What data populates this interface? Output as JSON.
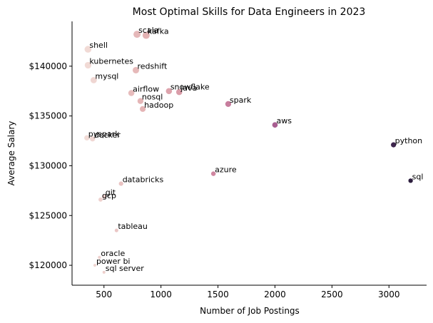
{
  "chart_data": {
    "type": "scatter",
    "title": "Most Optimal Skills for Data Engineers in 2023",
    "xlabel": "Number of Job Postings",
    "ylabel": "Average Salary",
    "xlim": [
      220,
      3330
    ],
    "ylim": [
      118000,
      144500
    ],
    "xticks": [
      {
        "value": 500,
        "label": "500"
      },
      {
        "value": 1000,
        "label": "1000"
      },
      {
        "value": 1500,
        "label": "1500"
      },
      {
        "value": 2000,
        "label": "2000"
      },
      {
        "value": 2500,
        "label": "2500"
      },
      {
        "value": 3000,
        "label": "3000"
      }
    ],
    "yticks": [
      {
        "value": 120000,
        "label": "$120000"
      },
      {
        "value": 125000,
        "label": "$125000"
      },
      {
        "value": 130000,
        "label": "$130000"
      },
      {
        "value": 135000,
        "label": "$135000"
      },
      {
        "value": 140000,
        "label": "$140000"
      }
    ],
    "grid": false,
    "legend": "none",
    "color_scale": [
      "#f1dbd6",
      "#e2aeb0",
      "#cf85a0",
      "#a45a8f",
      "#6d3a76",
      "#2d1e3e"
    ],
    "points": [
      {
        "label": "scala",
        "x": 790,
        "y": 143200
      },
      {
        "label": "kafka",
        "x": 870,
        "y": 143100
      },
      {
        "label": "shell",
        "x": 360,
        "y": 141700
      },
      {
        "label": "kubernetes",
        "x": 360,
        "y": 140100
      },
      {
        "label": "redshift",
        "x": 780,
        "y": 139600
      },
      {
        "label": "mysql",
        "x": 410,
        "y": 138600
      },
      {
        "label": "airflow",
        "x": 740,
        "y": 137300
      },
      {
        "label": "snowflake",
        "x": 1070,
        "y": 137500
      },
      {
        "label": "java",
        "x": 1160,
        "y": 137400
      },
      {
        "label": "nosql",
        "x": 820,
        "y": 136500
      },
      {
        "label": "spark",
        "x": 1590,
        "y": 136200
      },
      {
        "label": "hadoop",
        "x": 840,
        "y": 135700
      },
      {
        "label": "aws",
        "x": 2000,
        "y": 134100
      },
      {
        "label": "pyspark",
        "x": 350,
        "y": 132800
      },
      {
        "label": "docker",
        "x": 400,
        "y": 132700
      },
      {
        "label": "python",
        "x": 3040,
        "y": 132100
      },
      {
        "label": "azure",
        "x": 1460,
        "y": 129200
      },
      {
        "label": "sql",
        "x": 3190,
        "y": 128500
      },
      {
        "label": "databricks",
        "x": 650,
        "y": 128200
      },
      {
        "label": "git",
        "x": 500,
        "y": 126900
      },
      {
        "label": "gcp",
        "x": 470,
        "y": 126600
      },
      {
        "label": "tableau",
        "x": 610,
        "y": 123500
      },
      {
        "label": "oracle",
        "x": 460,
        "y": 120800
      },
      {
        "label": "power bi",
        "x": 420,
        "y": 120000
      },
      {
        "label": "sql server",
        "x": 500,
        "y": 119300
      }
    ]
  }
}
